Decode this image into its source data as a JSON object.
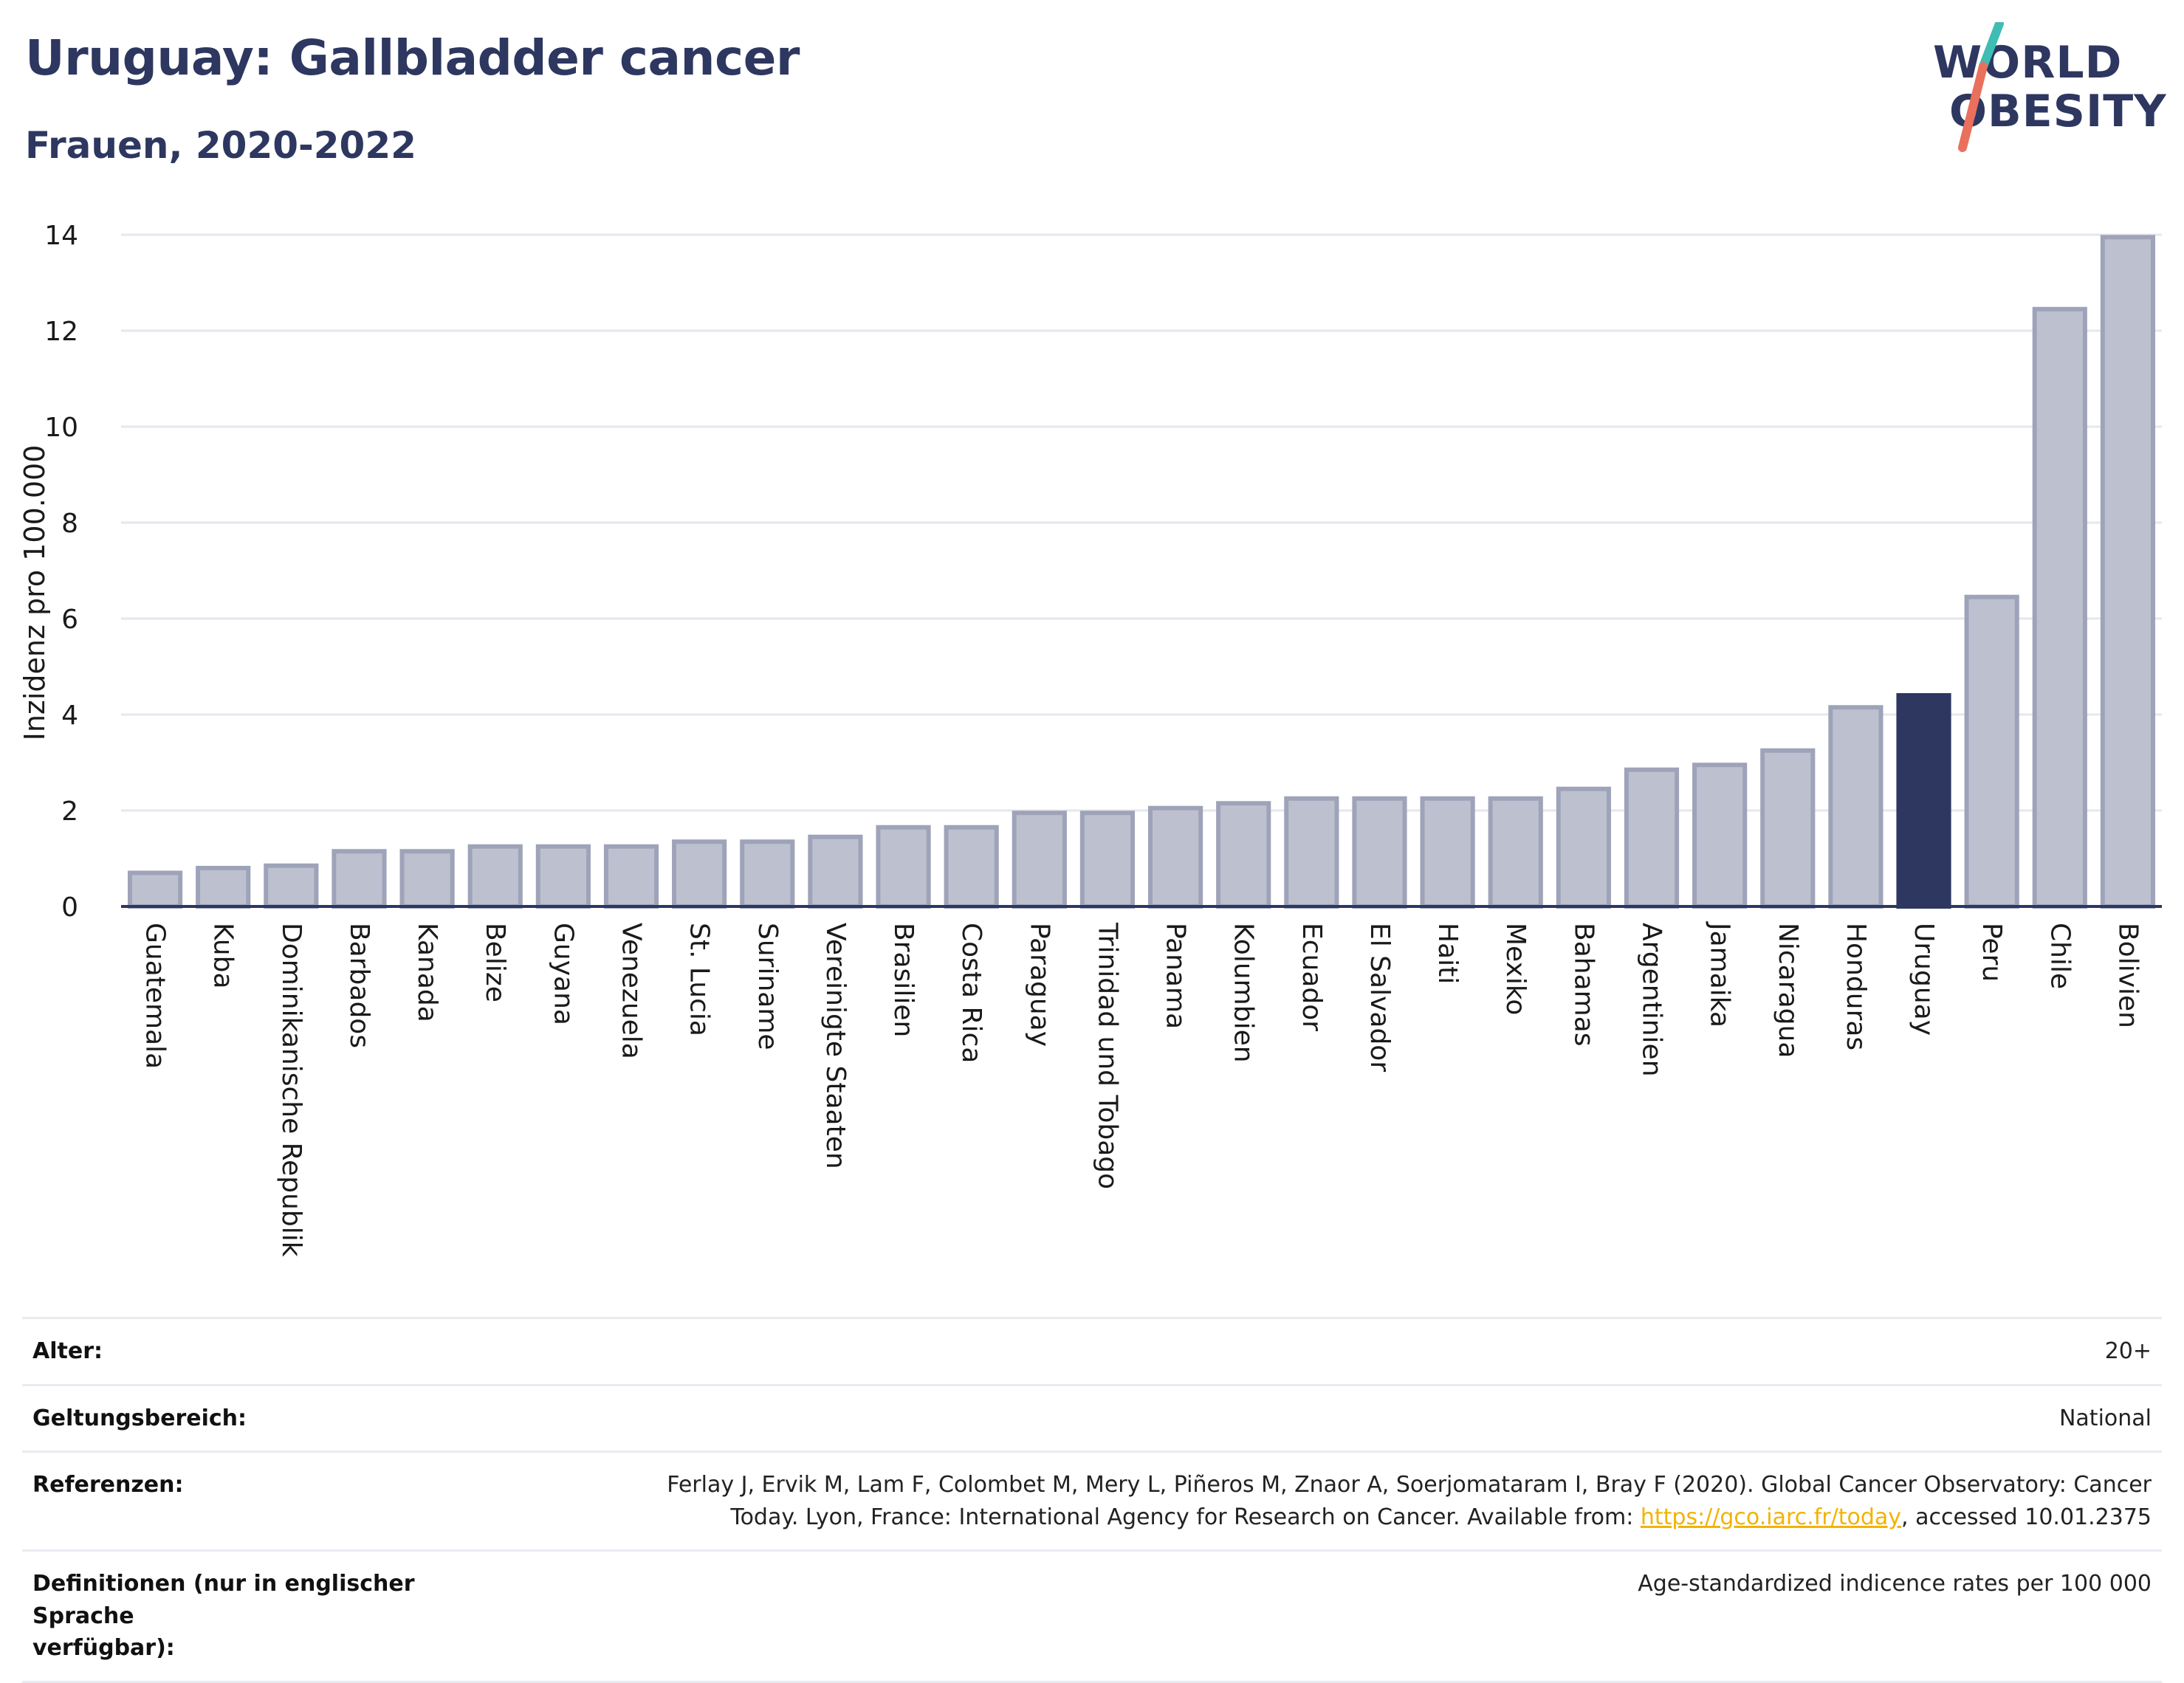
{
  "header": {
    "title": "Uruguay: Gallbladder cancer",
    "subtitle": "Frauen, 2020-2022"
  },
  "logo": {
    "line1": "WORLD",
    "line2": "OBESITY",
    "accent_teal": "#3dbdb3",
    "accent_coral": "#e8705d"
  },
  "colors": {
    "bar": "#bdc1cf",
    "bar_edge": "#9ea3b9",
    "highlight": "#2d3760",
    "grid": "#e6e7ee",
    "axis": "#2d3760"
  },
  "chart_data": {
    "type": "bar",
    "title": "Uruguay: Gallbladder cancer",
    "subtitle": "Frauen, 2020-2022",
    "ylabel": "Inzidenz pro 100.000",
    "xlabel": "",
    "ylim": [
      0,
      14
    ],
    "yticks": [
      0,
      2,
      4,
      6,
      8,
      10,
      12,
      14
    ],
    "grid": true,
    "highlight": "Uruguay",
    "categories": [
      "Guatemala",
      "Kuba",
      "Dominikanische Republik",
      "Barbados",
      "Kanada",
      "Belize",
      "Guyana",
      "Venezuela",
      "St. Lucia",
      "Suriname",
      "Vereinigte Staaten",
      "Brasilien",
      "Costa Rica",
      "Paraguay",
      "Trinidad und Tobago",
      "Panama",
      "Kolumbien",
      "Ecuador",
      "El Salvador",
      "Haiti",
      "Mexiko",
      "Bahamas",
      "Argentinien",
      "Jamaika",
      "Nicaragua",
      "Honduras",
      "Uruguay",
      "Peru",
      "Chile",
      "Bolivien"
    ],
    "values": [
      0.7,
      0.8,
      0.85,
      1.15,
      1.15,
      1.25,
      1.25,
      1.25,
      1.35,
      1.35,
      1.45,
      1.65,
      1.65,
      1.95,
      1.95,
      2.05,
      2.15,
      2.25,
      2.25,
      2.25,
      2.25,
      2.45,
      2.85,
      2.95,
      3.25,
      4.15,
      4.4,
      6.45,
      12.45,
      13.95
    ]
  },
  "info": [
    {
      "key": "Alter:",
      "value": "20+"
    },
    {
      "key": "Geltungsbereich:",
      "value": "National"
    }
  ],
  "references": {
    "key": "Referenzen:",
    "text_line1": "Ferlay J, Ervik M, Lam F, Colombet M, Mery L, Piñeros M, Znaor A, Soerjomataram I, Bray F (2020). Global Cancer Observatory: Cancer",
    "text_line2": "Today. Lyon, France: International Agency for Research on Cancer. Available from: ",
    "link": "https://gco.iarc.fr/today",
    "text_after": ", accessed 10.01.2375"
  },
  "definitions": {
    "key_line1": "Definitionen (nur in englischer Sprache",
    "key_line2": "verfügbar):",
    "value": "Age-standardized indicence rates per 100 000"
  }
}
